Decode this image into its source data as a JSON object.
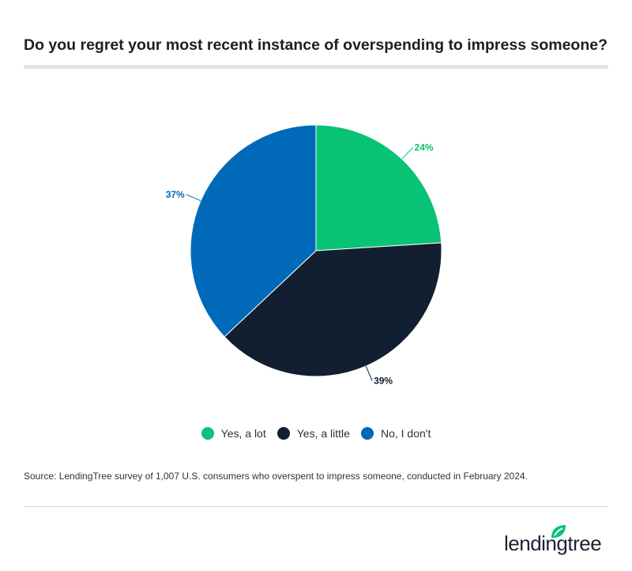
{
  "title": "Do you regret your most recent instance of overspending to impress someone?",
  "source": "Source: LendingTree survey of 1,007 U.S. consumers who overspent to impress someone, conducted in February 2024.",
  "logo": {
    "text": "lendingtree",
    "icon": "leaf-icon",
    "color": "#0ac275"
  },
  "chart_data": {
    "type": "pie",
    "title": "Do you regret your most recent instance of overspending to impress someone?",
    "legend_placement": "bottom",
    "slices": [
      {
        "name": "Yes, a lot",
        "value": 24,
        "label": "24%",
        "color": "#0ac275"
      },
      {
        "name": "Yes, a little",
        "value": 39,
        "label": "39%",
        "color": "#111f30"
      },
      {
        "name": "No, I don't",
        "value": 37,
        "label": "37%",
        "color": "#006ab9"
      }
    ]
  }
}
